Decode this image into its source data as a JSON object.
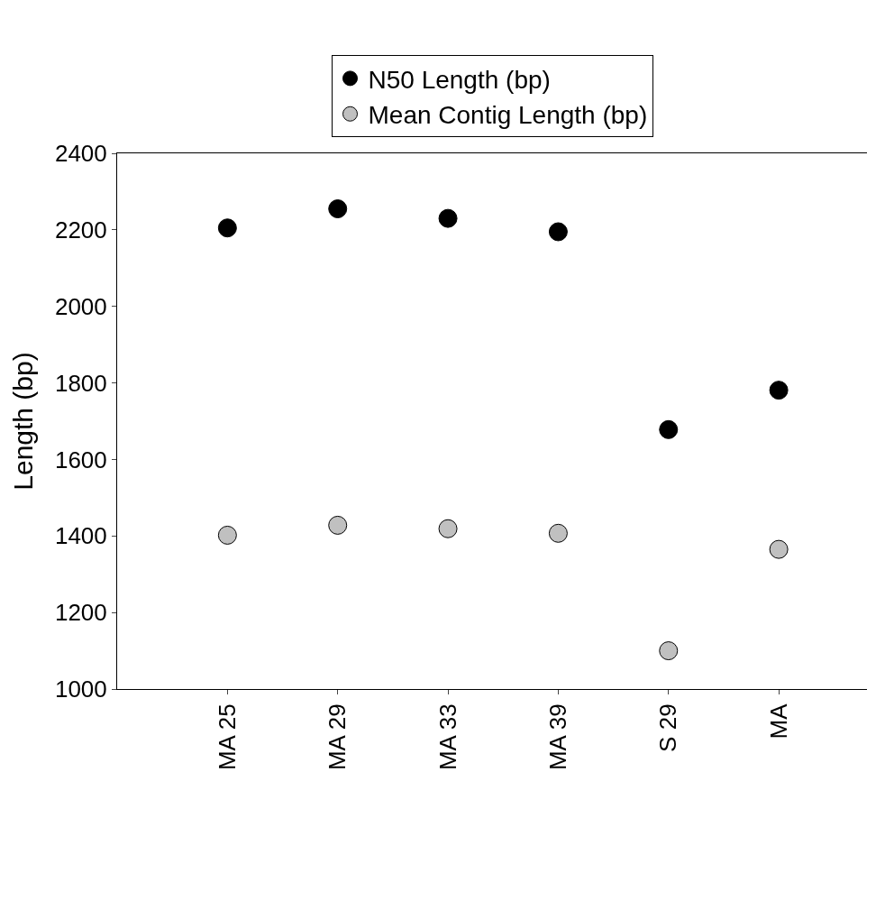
{
  "chart_data": {
    "type": "scatter",
    "ylabel": "Length (bp)",
    "categories": [
      "MA 25",
      "MA 29",
      "MA 33",
      "MA 39",
      "S 29",
      "MA"
    ],
    "series": [
      {
        "name": "N50 Length (bp)",
        "color": "#000000",
        "values": [
          2205,
          2255,
          2230,
          2195,
          1678,
          1781
        ]
      },
      {
        "name": "Mean Contig Length (bp)",
        "color": "#c0c0c0",
        "values": [
          1402,
          1428,
          1419,
          1407,
          1100,
          1365
        ]
      }
    ],
    "ylim": [
      1000,
      2400
    ],
    "yticks": [
      1000,
      1200,
      1400,
      1600,
      1800,
      2000,
      2200,
      2400
    ],
    "legend": "top",
    "marker": "circle"
  }
}
